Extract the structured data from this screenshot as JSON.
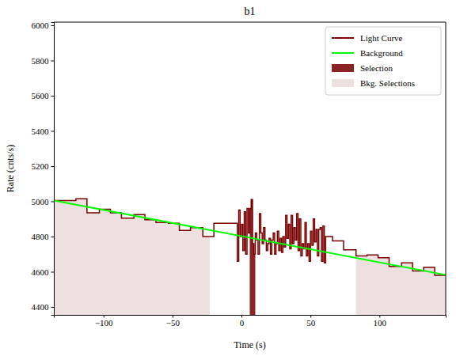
{
  "chart_data": {
    "type": "line",
    "title": "b1",
    "x_label": "Time (s)",
    "y_label": "Rate (cnts/s)",
    "xlim": [
      -136,
      148
    ],
    "ylim": [
      4355,
      6018
    ],
    "xticks": [
      {
        "value": -100,
        "label": "−100"
      },
      {
        "value": -50,
        "label": "−50"
      },
      0,
      50,
      100
    ],
    "yticks": [
      4400,
      4600,
      4800,
      5000,
      5200,
      5400,
      5600,
      5800,
      6000
    ],
    "legend": "upper right",
    "series": [
      {
        "name": "Light Curve",
        "color": "#7a0000",
        "type": "step",
        "x": [
          -136,
          -128,
          -120,
          -112,
          -103,
          -95,
          -87,
          -78,
          -70,
          -62,
          -53,
          -45,
          -37,
          -28,
          -20,
          -11,
          -3,
          -2,
          -1,
          0,
          1,
          2,
          3,
          4,
          5,
          6,
          7,
          8,
          9,
          10,
          11,
          12,
          13,
          14,
          15,
          16,
          17,
          18,
          19,
          20,
          21,
          22,
          23,
          24,
          25,
          26,
          27,
          28,
          29,
          30,
          31,
          32,
          33,
          34,
          35,
          36,
          37,
          38,
          39,
          40,
          41,
          42,
          43,
          44,
          45,
          46,
          47,
          48,
          49,
          50,
          51,
          52,
          53,
          54,
          55,
          56,
          57,
          58,
          59,
          60,
          61,
          62,
          66,
          74,
          83,
          91,
          99,
          107,
          116,
          124,
          132,
          140,
          148
        ],
        "values": [
          5005,
          5005,
          5015,
          4935,
          4955,
          4935,
          4905,
          4925,
          4895,
          4880,
          4875,
          4835,
          4850,
          4800,
          4875,
          4875,
          4660,
          4950,
          4800,
          4870,
          4720,
          4940,
          4700,
          4960,
          4820,
          4960,
          5010,
          4760,
          4700,
          4820,
          4780,
          4700,
          4930,
          4820,
          4760,
          4850,
          4780,
          4720,
          4760,
          4790,
          4700,
          4780,
          4820,
          4700,
          4760,
          4830,
          4720,
          4790,
          4710,
          4800,
          4740,
          4920,
          4790,
          4870,
          4730,
          4920,
          4760,
          4850,
          4780,
          4930,
          4720,
          4900,
          4690,
          4760,
          4730,
          4880,
          4690,
          4760,
          4660,
          4830,
          4750,
          4900,
          4770,
          4840,
          4690,
          4840,
          4850,
          4660,
          4860,
          4650,
          4800,
          4800,
          4775,
          4725,
          4690,
          4695,
          4680,
          4630,
          4650,
          4605,
          4625,
          4580,
          4580
        ]
      },
      {
        "name": "Background",
        "color": "#00ff00",
        "type": "line",
        "x": [
          -136,
          148
        ],
        "values": [
          5005,
          4582
        ]
      }
    ],
    "selections": [
      {
        "name": "Selection",
        "color": "#8b2323",
        "ranges": [
          [
            6,
            10
          ]
        ]
      },
      {
        "name": "Bkg. Selections",
        "color": "#eee0e0",
        "ranges": [
          [
            -136,
            -23
          ],
          [
            83,
            148
          ]
        ]
      }
    ]
  }
}
